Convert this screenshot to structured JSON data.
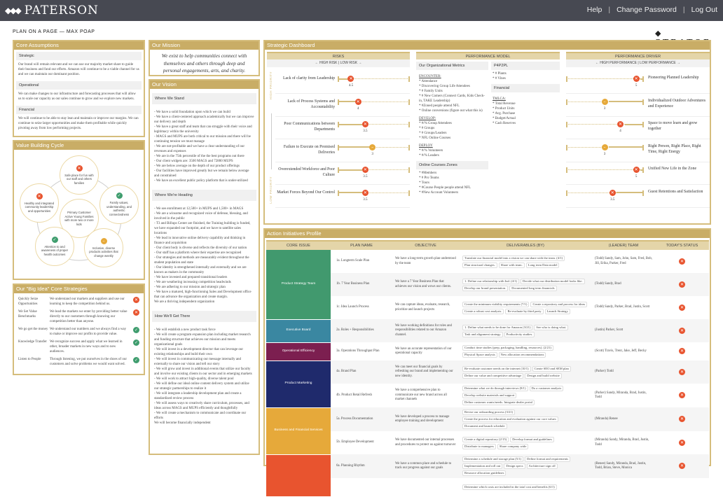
{
  "header": {
    "brand": "PATERSON",
    "nav": [
      "Help",
      "Change Password",
      "Log Out"
    ]
  },
  "page_title": "PLAN ON A PAGE — MAX POAP",
  "stratop_logo": "STRATOP",
  "colors": {
    "header": "#474952",
    "accent": "#c9ad66",
    "red": "#e8542f",
    "yellow": "#e6a93a",
    "green": "#3f9d6e"
  },
  "core_assumptions": {
    "title": "Core Assumptions",
    "sections": [
      {
        "label": "Strategic",
        "text": "Our brand will remain relevant and we can use our majority market share to guide their business and fund our efforts. Amazon will continue to be a viable channel for us and we can maintain our dominant position."
      },
      {
        "label": "Operational",
        "text": "We can make changes to our infrastructure and forecasting processes that will allow us to scale our capacity as our sales continue to grow and we explore new markets."
      },
      {
        "label": "Financial",
        "text": "We will continue to be able to stay lean and maintain or improve our margins. We can continue to seize larger opportunities and make them profitable while quickly pivoting away from low performing projects."
      }
    ]
  },
  "value_cycle": {
    "title": "Value Building Cycle",
    "center": "Primary Customer Active Young Families with more two or more kids",
    "nodes": [
      {
        "text": "Safe place for fun with our staff and others families",
        "status": "red"
      },
      {
        "text": "Family values, understanding, and authentic connectedness",
        "status": "green"
      },
      {
        "text": "Inclusive, diverse products activities that change weekly",
        "status": "yellow"
      },
      {
        "text": "Attention to and awareness of proper health outcomes",
        "status": "green"
      },
      {
        "text": "Healthy and integrated community leadership and opportunities",
        "status": "red"
      }
    ]
  },
  "big_ideas": {
    "title": "Our \"Big Idea\" Core Strategies",
    "rows": [
      {
        "name": "Quickly Seize Opportunities",
        "text": "We understand our markets and suppliers and use our learning to keep the competition behind us.",
        "status": "red"
      },
      {
        "name": "We Set Value Benchmarks",
        "text": "We lead the markets we enter by providing better value directly to our customers through knowing our competition better than anyone.",
        "status": "red"
      },
      {
        "name": "We go get the money",
        "text": "We understand our numbers and we always find a way to make or improve our profits to provide value.",
        "status": "green"
      },
      {
        "name": "Knowledge Transfer",
        "text": "We recognize success and apply what we learned in other, broader markets in new ways and to new audiences.",
        "status": "green"
      },
      {
        "name": "Listen to People",
        "text": "Through listening, we put ourselves in the shoes of our customers and solve problems we would want solved.",
        "status": "green"
      }
    ]
  },
  "mission": {
    "title": "Our Mission",
    "text": "We exist to help communities connect with themselves and others through deep and personal engagements, arts, and charity."
  },
  "vision": {
    "title": "Our Vision",
    "sections": [
      {
        "label": "Where We Stand",
        "items": [
          "- We have a solid foundation upon which we can build",
          "- We have a client-centered approach academically but we can improve our delivery and depth",
          "- We have a great staff and team that can struggle with their voice and legitimacy within the university",
          "- MAGS and MUPS are both critical to our mission and there will be continuing tension we must manage",
          "- We are not-profitable and we have a clear understanding of our revenues and expenses",
          "- We are in the 75th percentile of the the best programs out there",
          "- Our client widgets are: 3500 MAGS and 72800 MUPS",
          "- We are below average on the depth of our product offerings",
          "- Our facilities have improved greatly but we remain below average and constrained",
          "- We have an excellent public policy platform that is under-utilized"
        ]
      },
      {
        "label": "Where We're Heading",
        "items": [
          "- We see enrollment at 12,500+ in MUPS and 1,500+ in MAGS",
          "- We are a winsome and recognized voice of defense, blessing, and involved in the public",
          "- T3 and Billups Center are finished, the Training building is funded, we have expanded our footprint, and we have to satellite sales locations",
          "- We lead in innovative online delivery capability and thinking in finance and acquisition",
          "- Our client body is diverse and reflects the diversity of our nation",
          "- Our staff has a platform where their expertise are recognized",
          "- Our strategies and methods are measurably evident throughout the student population and state",
          "- Our identity is strengthened internally and externally and we are known as makers in the community",
          "- We have invested and prepared transitional leaders",
          "- We are weathering increasing competition headwinds",
          "- We are adhering to our mission and strategic plan",
          "- We have a matured, high-functioning Sales and Development office that can advance the organization and create margin.",
          "We are a thriving independent organization"
        ]
      },
      {
        "label": "How We'll Get There",
        "items": [
          "- We will establish a new product task force",
          "- We will create a program expansion plan including market research and funding structure that achieves our mission and meets organizational goals",
          "- We will invest in a development director that can leverage our existing relationships and build their own",
          "- We will invest in communicating our message internally and externally to share our vision and tell our story",
          "- We will grow and invest in additional events that utilize our faculty and involve our existing clients in our sector and in emerging markets",
          "- We will work to attract high-quality, diverse talent pool",
          "- We will define our ideal online content delivery system and utilize our strategic partnerships to realize it",
          "- We will integrate a leadership development plan and create a standardized review process",
          "- We will assess ways to creatively share curriculum, processes, and ideas across MAGS and MUPS efficiently and thoughtfully",
          "- We will create a mechanism to communicate and coordinate our efforts",
          "We will become financially independent"
        ]
      }
    ]
  },
  "dashboard": {
    "title": "Strategic Dashboard",
    "risks": {
      "title": "RISKS",
      "scale": "← HIGH RISK | LOW RISK →",
      "high_label": "HIGH PRIORITY",
      "low_label": "LOW PRIORITY",
      "rows": [
        {
          "label": "Lack of clarity from Leadership",
          "value": 4.5,
          "status": "red"
        },
        {
          "label": "Lack of Process Systems and Accountability",
          "value": 4,
          "status": "red"
        },
        {
          "label": "Poor Communications between Departments",
          "value": 3.5,
          "status": "red"
        },
        {
          "label": "Failure to Execute on Promised Deliveries",
          "value": 3,
          "status": "yellow"
        },
        {
          "label": "Overextended Workforce and Poor Culture",
          "value": 3.5,
          "status": "red"
        },
        {
          "label": "Market Forces Beyond Our Control",
          "value": 3.5,
          "status": "red"
        }
      ]
    },
    "performance_model": {
      "title": "PERFORMANCE MODEL",
      "left": {
        "label": "Our Organizational Metrics",
        "groups": [
          {
            "heading": "ENCOUNTER:",
            "items": [
              "* Attendance",
              "* Discovering Group Life Attendees",
              "* # Family Units",
              "* # New Comers (Connect Cards, Kids Check-in, TAKE Leadership)",
              "* #Zoned people attend NFL",
              "* Online conversions (figure out what this is)"
            ]
          },
          {
            "heading": "DEVELOP:",
            "items": [
              "* #/% Group Attendees",
              "* # Groups",
              "* #   Groups/Leaders",
              "* NFL   Online Courses"
            ]
          },
          {
            "heading": "DEPLOY",
            "items": [
              "* #/%   Volunteers",
              "* #/%   Leaders"
            ]
          }
        ]
      },
      "zones": {
        "label": "Online Courses Zones",
        "items": [
          "* #Members",
          "* # Pro Teams",
          "* Tours",
          "* #Course People people attend NFL",
          "* #New Account Volunteers"
        ]
      },
      "right": {
        "label": "P4P2PL",
        "items": [
          "* # Plants",
          "* # Vines"
        ]
      },
      "financial": {
        "label": "Financial",
        "heading": "TMLCA:",
        "items": [
          "* Total Revenue",
          "* Product Units",
          "* Avg. Purchase",
          "* Budget/Actual",
          "* Cash Reserves"
        ]
      }
    },
    "drivers": {
      "title": "PERFORMANCE DRIVER",
      "scale": "← HIGH PERFORMANCE | LOW PERFORMANCE →",
      "rows": [
        {
          "label": "Pioneering Planned Leadership",
          "value": 5,
          "status": "red"
        },
        {
          "label": "Individualized Outdoor Adventures and Experience",
          "value": 3,
          "status": "yellow"
        },
        {
          "label": "Space to move learn and grow together",
          "value": 4,
          "status": "red"
        },
        {
          "label": "Right Person, Right Place, Right Time, Right Energy",
          "value": 3,
          "status": "yellow"
        },
        {
          "label": "Unified New Life in the Zone",
          "value": 5,
          "status": "red"
        },
        {
          "label": "Guest Retentions and Satisfaction",
          "value": 3.5,
          "status": "red"
        }
      ]
    }
  },
  "actions": {
    "title": "Action Initiatives Profile",
    "columns": [
      "CORE ISSUE",
      "PLAN NAME",
      "OBJECTIVE",
      "DELIVERABLES (BY)",
      "(LEADER) TEAM",
      "TODAY'S STATUS"
    ],
    "groups": [
      {
        "issue": "Product Strategy Team",
        "color": "#41996e",
        "rows": [
          {
            "plan": "1a. Longterm Scale Plan",
            "objective": "We have a long-term growth plan understood by the team",
            "deliverables": [
              "Translate our financial model into a vision we can share with the team. (4/1)",
              "Plan structural changes.",
              "Share with team.",
              "Long term Data model"
            ],
            "team": "(Todd) Sandy, Sam, John, Sam, Fred, Bob, Jill, Erika, Parker, Fred",
            "status": "red"
          },
          {
            "plan": "1b. 7 Year Business Plan",
            "objective": "We have a 7 Year Business Plan that achieves our vision and wows our clients.",
            "deliverables": [
              "1. Define our relationship with Ind. (4/1)",
              "Decide what our distribution model looks like.",
              "Develop our brand presentation.",
              "Documented long term financials"
            ],
            "team": "(Todd) Sandy, Brad",
            "status": "red"
          },
          {
            "plan": "1c. Idea Launch Process",
            "objective": "We can capture ideas, evaluate, research, prioritize and launch projects",
            "deliverables": [
              "Create the minimum viability requirements (7/1)",
              "Create a repository and process for ideas",
              "Create a robust cost analysis.",
              "Re-evaluate by third party",
              "Launch Strategy"
            ],
            "team": "(Todd) Sandy, Parker, Brad, Justin, Scott",
            "status": "red"
          }
        ]
      },
      {
        "issue": "Executive Board",
        "color": "#3a87a1",
        "rows": [
          {
            "plan": "2a. Roles + Responsibilities",
            "objective": "We have working definitions for roles and responsibilities related to our Amazon channel.",
            "deliverables": [
              "1. Define what needs to be done for Amazon (3/21)",
              "See who is doing what.",
              "Task and alignment strategy",
              "Productivity studies."
            ],
            "team": "(Justin) Parker, Scott",
            "status": "red"
          }
        ]
      },
      {
        "issue": "Operational Efficiency",
        "color": "#7c1f50",
        "rows": [
          {
            "plan": "3a. Operations Throughput Plan",
            "objective": "We have an accurate representation of our operational capacity",
            "deliverables": [
              "Conduct time studies (prep, packaging, handling, resources). (2/21)",
              "Physical Space analysis",
              "New allocation recommendations"
            ],
            "team": "(Scott) Travis, Trent, Jake, Jeff, Becky",
            "status": "red"
          }
        ]
      },
      {
        "issue": "Product Marketing",
        "color": "#1f2a6c",
        "rows": [
          {
            "plan": "4a. Brand Plan",
            "objective": "We can meet our financial goals by refreshing our brand and implementing our new identity.",
            "deliverables": [
              "Re-evaluate customer needs on the internet (10/1)",
              "Create SEO and SEM plan",
              "Define our value and competitive advantage",
              "Design and build website"
            ],
            "team": "(Parker) Todd",
            "status": "red"
          },
          {
            "plan": "4b. Product Retail Refresh",
            "objective": "We have a comprehensive plan to communicate our new brand across all market channels",
            "deliverables": [
              "Determine what we do through interviews (8/1)",
              "Do a customer analysis",
              "Develop website materials and support",
              "Define customer wants/needs. Integrate dealer portal"
            ],
            "team": "(Parker) Sandy, Miranda, Brad, Justin, Todd",
            "status": "red"
          }
        ]
      },
      {
        "issue": "Business and Financial Services",
        "color": "#e6a93a",
        "rows": [
          {
            "plan": "5a. Process Documentation",
            "objective": "We have developed a process to manage employee training and development",
            "deliverables": [
              "Revise our onboarding process (3/21)",
              "Create the process for education and evaluation against our core values",
              "Document and launch schedule"
            ],
            "team": "(Miranda) Renee",
            "status": "red"
          },
          {
            "plan": "5b. Employee Development",
            "objective": "We have documented our internal processes and procedures to protect us against turnover",
            "deliverables": [
              "Create a digital repository (2/15)",
              "Develop format and guidelines",
              "Distribute to managers",
              "Share company wide"
            ],
            "team": "(Miranda) Sandy, Miranda, Brad, Justin, Todd",
            "status": "red"
          }
        ]
      },
      {
        "issue": "",
        "color": "#e8542f",
        "rows": [
          {
            "plan": "6a. Planning Rhythm",
            "objective": "We have a common place and schedule to track our progress against our goals",
            "deliverables": [
              "Determine a schedule and storage plan (5/1)",
              "Define format and requirements",
              "Implementation and roll out",
              "Design specs",
              "Architecture sign off",
              "Resource allocation guidelines"
            ],
            "team": "(Renee) Sandy, Miranda, Brad, Justin, Todd, Brian, Steve, Monica",
            "status": "red"
          },
          {
            "plan": "",
            "objective": "",
            "deliverables": [
              "Determine which costs are included in the total cost and benefits (6/1)"
            ],
            "team": "",
            "status": ""
          }
        ]
      }
    ]
  }
}
